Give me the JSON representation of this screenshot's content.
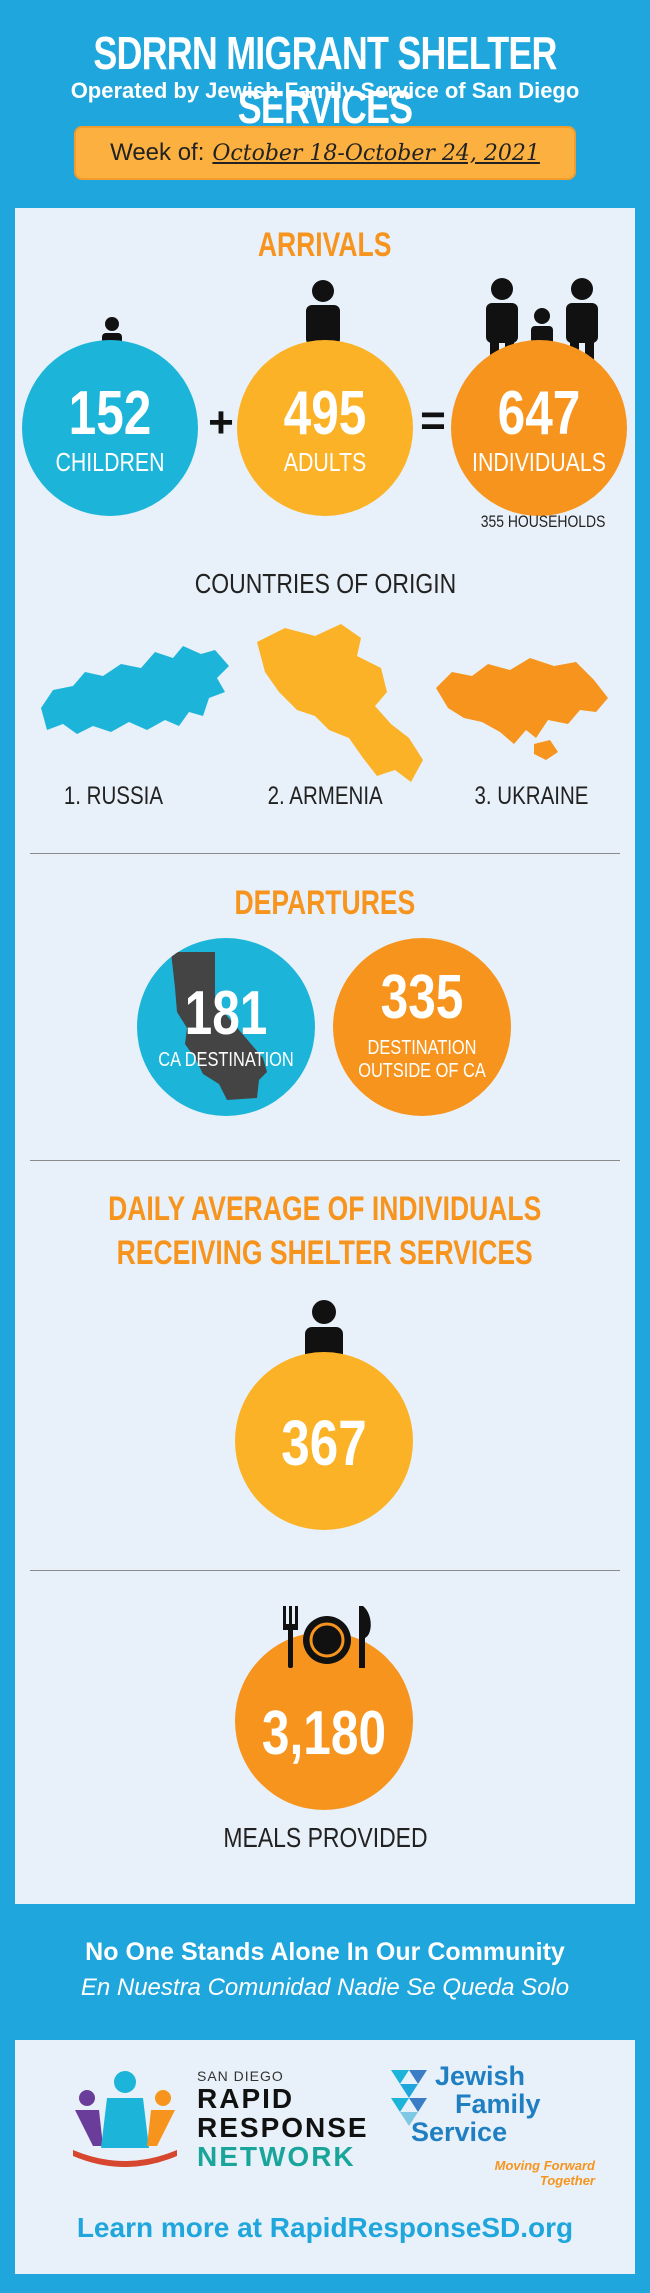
{
  "header": {
    "title": "SDRRN MIGRANT SHELTER SERVICES",
    "subtitle": "Operated by Jewish Family Service of San Diego",
    "week_label": "Week of:",
    "week_dates": "October 18-October 24, 2021"
  },
  "arrivals": {
    "title": "ARRIVALS",
    "children": {
      "value": "152",
      "label": "CHILDREN"
    },
    "plus": "+",
    "adults": {
      "value": "495",
      "label": "ADULTS"
    },
    "equals": "=",
    "individuals": {
      "value": "647",
      "label": "INDIVIDUALS"
    },
    "households": "355 HOUSEHOLDS"
  },
  "countries": {
    "title": "COUNTRIES OF ORIGIN",
    "items": [
      "1. RUSSIA",
      "2. ARMENIA",
      "3. UKRAINE"
    ]
  },
  "departures": {
    "title": "DEPARTURES",
    "ca": {
      "value": "181",
      "label": "CA DESTINATION"
    },
    "outside": {
      "value": "335",
      "label_line1": "DESTINATION",
      "label_line2": "OUTSIDE OF CA"
    }
  },
  "daily": {
    "title_line1": "DAILY AVERAGE OF INDIVIDUALS",
    "title_line2": "RECEIVING SHELTER SERVICES",
    "value": "367"
  },
  "meals": {
    "value": "3,180",
    "label": "MEALS PROVIDED"
  },
  "footer": {
    "line1": "No One Stands Alone In Our Community",
    "line2": "En Nuestra Comunidad Nadie Se Queda Solo",
    "sdrrn_small": "SAN DIEGO",
    "sdrrn_l1": "RAPID",
    "sdrrn_l2": "RESPONSE",
    "sdrrn_l3": "NETWORK",
    "jfs_l1": "Jewish",
    "jfs_l2": "Family",
    "jfs_l3": "Service",
    "jfs_tag1": "Moving Forward",
    "jfs_tag2": "Together",
    "learn_more": "Learn more at RapidResponseSD.org"
  },
  "colors": {
    "background": "#1fa6dd",
    "cyan": "#1cb5d9",
    "yellow": "#fbb226",
    "orange": "#f7941d",
    "panel": "#e8f1f9"
  }
}
